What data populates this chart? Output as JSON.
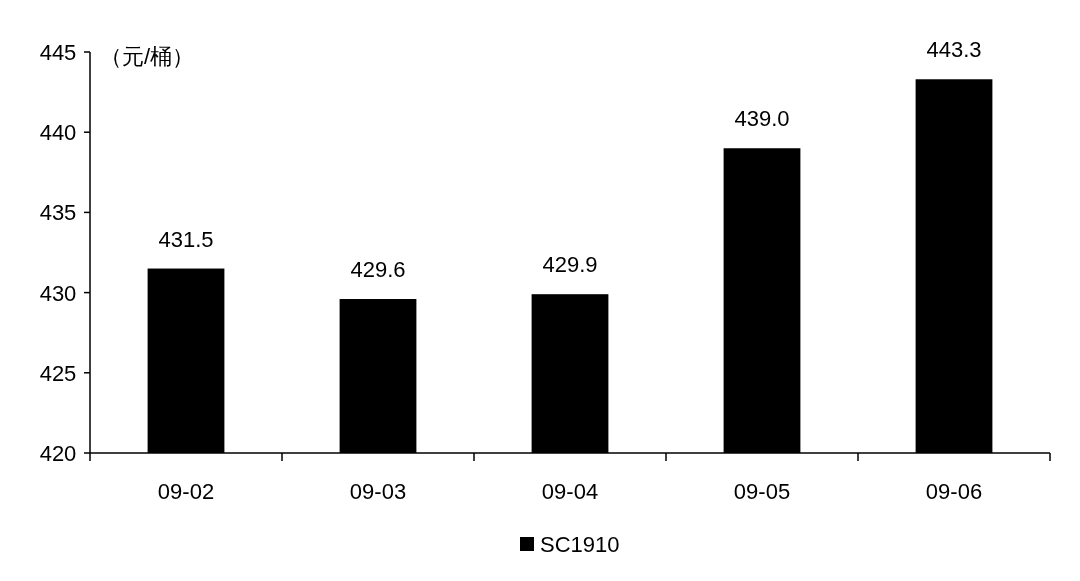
{
  "chart_data": {
    "type": "bar",
    "ylabel": "（元/桶）",
    "categories": [
      "09-02",
      "09-03",
      "09-04",
      "09-05",
      "09-06"
    ],
    "series": [
      {
        "name": "SC1910",
        "color": "#000000",
        "values": [
          431.5,
          429.6,
          429.9,
          439.0,
          443.3
        ],
        "value_labels": [
          "431.5",
          "429.6",
          "429.9",
          "439.0",
          "443.3"
        ]
      }
    ],
    "ylim": [
      420,
      445
    ],
    "yticks": [
      420,
      425,
      430,
      435,
      440,
      445
    ],
    "grid": false,
    "legend": "bottom"
  }
}
